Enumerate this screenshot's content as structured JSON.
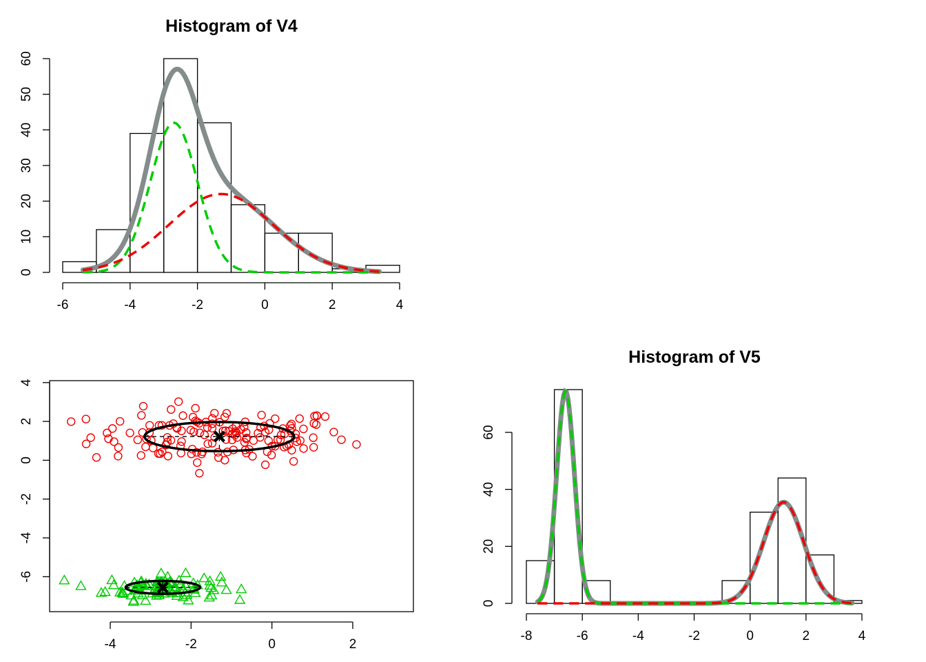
{
  "chart_data": [
    {
      "id": "hist-v4",
      "type": "histogram",
      "title": "Histogram of V4",
      "xlim": [
        -6,
        4
      ],
      "ylim": [
        0,
        60
      ],
      "xticks": [
        -6,
        -4,
        -2,
        0,
        2,
        4
      ],
      "yticks": [
        0,
        10,
        20,
        30,
        40,
        50,
        60
      ],
      "breaks": [
        -6,
        -5,
        -4,
        -3,
        -2,
        -1,
        0,
        1,
        2,
        3,
        4
      ],
      "counts": [
        3,
        12,
        39,
        60,
        42,
        19,
        11,
        11,
        1,
        2
      ],
      "x_range": [
        -5.4,
        3.4
      ],
      "components": [
        {
          "mean": -2.7,
          "sd": 0.7,
          "peak": 42,
          "color": "#00cc00",
          "style": "dashed"
        },
        {
          "mean": -1.3,
          "sd": 1.55,
          "peak": 22,
          "color": "#ee0000",
          "style": "dashed"
        }
      ],
      "total_color": "#848c8c"
    },
    {
      "id": "scatter-v4-v5",
      "type": "scatter",
      "xlim": [
        -5.5,
        3.5
      ],
      "ylim": [
        -7.8,
        4.1
      ],
      "xticks": [
        -4,
        -2,
        0,
        2
      ],
      "yticks": [
        -6,
        -4,
        -2,
        0,
        2,
        4
      ],
      "groups": [
        {
          "marker": "circle",
          "color": "#ee0000",
          "n": 150,
          "cx": -1.3,
          "cy": 1.22,
          "sdx": 1.6,
          "sdy": 0.72,
          "ellipse": {
            "rx": 1.85,
            "ry": 0.75
          }
        },
        {
          "marker": "triangle",
          "color": "#00cc00",
          "n": 100,
          "cx": -2.7,
          "cy": -6.55,
          "sdx": 0.7,
          "sdy": 0.32,
          "ellipse": {
            "rx": 0.92,
            "ry": 0.33
          }
        }
      ]
    },
    {
      "id": "hist-v5",
      "type": "histogram",
      "title": "Histogram of V5",
      "xlim": [
        -8,
        4
      ],
      "ylim": [
        0,
        75
      ],
      "xticks": [
        -8,
        -6,
        -4,
        -2,
        0,
        2,
        4
      ],
      "yticks": [
        0,
        20,
        40,
        60
      ],
      "breaks": [
        -8,
        -7,
        -6,
        -5,
        -4,
        -3,
        -2,
        -1,
        0,
        1,
        2,
        3,
        4
      ],
      "counts": [
        15,
        75,
        8,
        0,
        0,
        0,
        0,
        8,
        32,
        44,
        17,
        1
      ],
      "x_range": [
        -7.6,
        3.65
      ],
      "components": [
        {
          "mean": -6.6,
          "sd": 0.32,
          "peak": 74.5,
          "color": "#00cc00",
          "style": "dashed"
        },
        {
          "mean": 1.2,
          "sd": 0.72,
          "peak": 35.5,
          "color": "#ee0000",
          "style": "dashed"
        }
      ],
      "total_color": "#848c8c"
    }
  ]
}
